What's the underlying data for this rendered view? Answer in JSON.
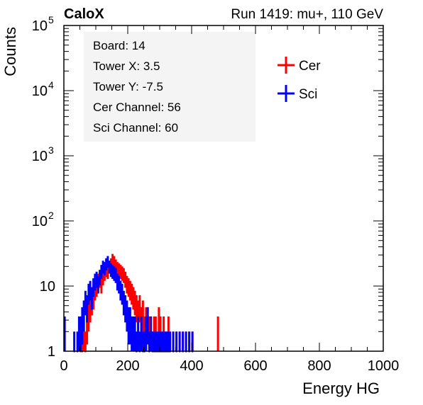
{
  "header": {
    "left_label": "CaloX",
    "right_label": "Run 1419: mu+, 110 GeV"
  },
  "info_box": {
    "lines": [
      "Board: 14",
      "Tower X: 3.5",
      "Tower Y: -7.5",
      "Cer Channel: 56",
      "Sci Channel: 60"
    ]
  },
  "colors": {
    "cer": "#ff0000",
    "sci": "#0000ff",
    "axis": "#000000"
  },
  "chart_data": {
    "type": "line",
    "title": "",
    "xlabel": "Energy HG",
    "ylabel": "Counts",
    "xlim": [
      0,
      1000
    ],
    "ylim": [
      1,
      100000
    ],
    "y_scale": "log",
    "grid": false,
    "legend_position": "top-right",
    "x_ticks": [
      "0",
      "200",
      "400",
      "600",
      "800",
      "1000"
    ],
    "y_ticks": [
      {
        "value": 1,
        "base": "1",
        "exp": ""
      },
      {
        "value": 10,
        "base": "10",
        "exp": ""
      },
      {
        "value": 100,
        "base": "10",
        "exp": "2"
      },
      {
        "value": 1000,
        "base": "10",
        "exp": "3"
      },
      {
        "value": 10000,
        "base": "10",
        "exp": "4"
      },
      {
        "value": 100000,
        "base": "10",
        "exp": "5"
      }
    ],
    "series": [
      {
        "name": "Cer",
        "color": "#ff0000",
        "x": [
          50,
          55,
          60,
          65,
          70,
          75,
          80,
          85,
          90,
          95,
          100,
          105,
          110,
          115,
          120,
          125,
          130,
          135,
          140,
          145,
          150,
          155,
          160,
          165,
          170,
          175,
          180,
          185,
          190,
          195,
          200,
          205,
          210,
          215,
          220,
          225,
          230,
          235,
          240,
          245,
          250,
          255,
          260,
          265,
          270,
          275,
          280,
          285,
          290,
          295,
          300,
          305,
          310,
          315,
          320,
          325,
          330,
          340,
          350,
          360,
          370,
          380,
          390,
          400,
          480
        ],
        "y": [
          1,
          1,
          2,
          1,
          3,
          4,
          5,
          6,
          7,
          9,
          10,
          12,
          13,
          11,
          14,
          16,
          18,
          17,
          20,
          22,
          26,
          24,
          21,
          19,
          18,
          17,
          16,
          15,
          13,
          11,
          10,
          9,
          8,
          7,
          6,
          5,
          4,
          5,
          3,
          4,
          2,
          3,
          3,
          2,
          2,
          1,
          2,
          2,
          1,
          3,
          2,
          1,
          2,
          1,
          1,
          2,
          1,
          1,
          1,
          1,
          1,
          1,
          1,
          1,
          2
        ]
      },
      {
        "name": "Sci",
        "color": "#0000ff",
        "x": [
          0,
          30,
          40,
          45,
          50,
          55,
          60,
          65,
          70,
          75,
          80,
          85,
          90,
          95,
          100,
          105,
          110,
          115,
          120,
          125,
          130,
          135,
          140,
          145,
          150,
          155,
          160,
          165,
          170,
          175,
          180,
          185,
          190,
          195,
          200,
          205,
          210,
          215,
          220,
          225,
          230,
          235,
          240,
          245,
          250,
          255,
          260,
          265,
          270,
          275,
          280,
          285,
          290,
          295,
          300,
          305,
          310,
          315,
          320,
          325,
          330,
          340,
          350,
          360,
          370,
          380,
          390,
          400
        ],
        "y": [
          2,
          1,
          1,
          2,
          2,
          3,
          4,
          6,
          5,
          8,
          9,
          7,
          10,
          12,
          13,
          11,
          14,
          17,
          20,
          19,
          22,
          24,
          20,
          18,
          17,
          16,
          15,
          12,
          11,
          9,
          8,
          6,
          5,
          4,
          3,
          3,
          2,
          2,
          2,
          1,
          2,
          1,
          2,
          1,
          1,
          2,
          3,
          1,
          2,
          1,
          1,
          1,
          1,
          1,
          1,
          1,
          1,
          1,
          1,
          1,
          1,
          1,
          1,
          1,
          1,
          1,
          1,
          1
        ]
      }
    ]
  }
}
